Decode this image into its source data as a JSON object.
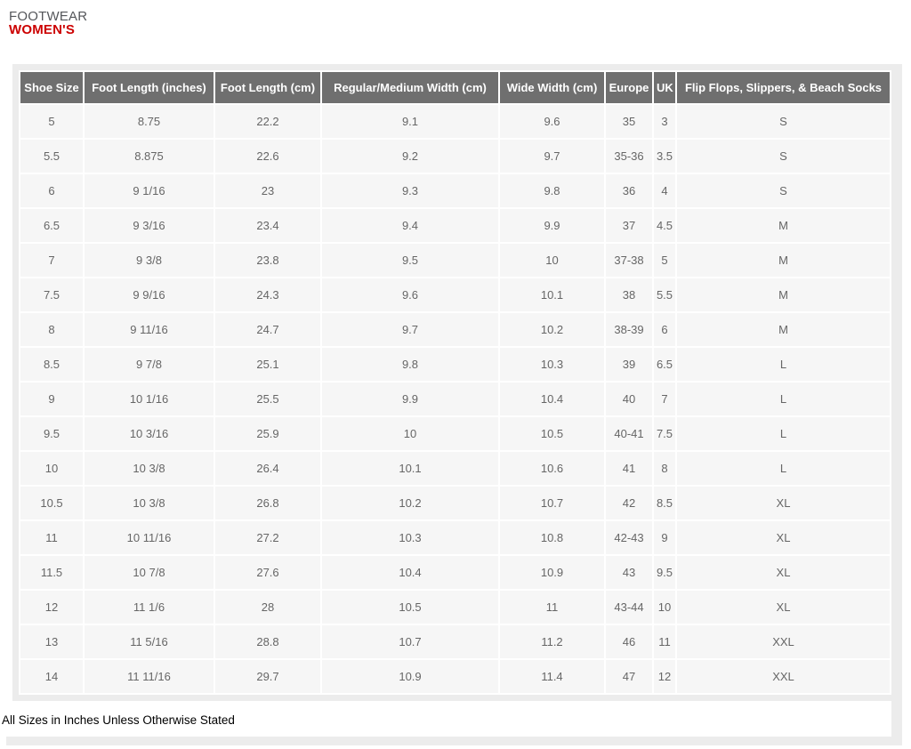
{
  "heading": {
    "category": "FOOTWEAR",
    "section": "WOMEN'S"
  },
  "table": {
    "columns": [
      "Shoe Size",
      "Foot Length (inches)",
      "Foot Length (cm)",
      "Regular/Medium Width (cm)",
      "Wide Width (cm)",
      "Europe",
      "UK",
      "Flip Flops, Slippers, & Beach Socks"
    ],
    "rows": [
      [
        "5",
        "8.75",
        "22.2",
        "9.1",
        "9.6",
        "35",
        "3",
        "S"
      ],
      [
        "5.5",
        "8.875",
        "22.6",
        "9.2",
        "9.7",
        "35-36",
        "3.5",
        "S"
      ],
      [
        "6",
        "9 1/16",
        "23",
        "9.3",
        "9.8",
        "36",
        "4",
        "S"
      ],
      [
        "6.5",
        "9 3/16",
        "23.4",
        "9.4",
        "9.9",
        "37",
        "4.5",
        "M"
      ],
      [
        "7",
        "9 3/8",
        "23.8",
        "9.5",
        "10",
        "37-38",
        "5",
        "M"
      ],
      [
        "7.5",
        "9 9/16",
        "24.3",
        "9.6",
        "10.1",
        "38",
        "5.5",
        "M"
      ],
      [
        "8",
        "9 11/16",
        "24.7",
        "9.7",
        "10.2",
        "38-39",
        "6",
        "M"
      ],
      [
        "8.5",
        "9 7/8",
        "25.1",
        "9.8",
        "10.3",
        "39",
        "6.5",
        "L"
      ],
      [
        "9",
        "10 1/16",
        "25.5",
        "9.9",
        "10.4",
        "40",
        "7",
        "L"
      ],
      [
        "9.5",
        "10 3/16",
        "25.9",
        "10",
        "10.5",
        "40-41",
        "7.5",
        "L"
      ],
      [
        "10",
        "10 3/8",
        "26.4",
        "10.1",
        "10.6",
        "41",
        "8",
        "L"
      ],
      [
        "10.5",
        "10 3/8",
        "26.8",
        "10.2",
        "10.7",
        "42",
        "8.5",
        "XL"
      ],
      [
        "11",
        "10 11/16",
        "27.2",
        "10.3",
        "10.8",
        "42-43",
        "9",
        "XL"
      ],
      [
        "11.5",
        "10 7/8",
        "27.6",
        "10.4",
        "10.9",
        "43",
        "9.5",
        "XL"
      ],
      [
        "12",
        "11 1/6",
        "28",
        "10.5",
        "11",
        "43-44",
        "10",
        "XL"
      ],
      [
        "13",
        "11 5/16",
        "28.8",
        "10.7",
        "11.2",
        "46",
        "11",
        "XXL"
      ],
      [
        "14",
        "11 11/16",
        "29.7",
        "10.9",
        "11.4",
        "47",
        "12",
        "XXL"
      ]
    ]
  },
  "footnote": "All Sizes in Inches Unless Otherwise Stated",
  "colors": {
    "header_bg": "#6f6f6f",
    "header_text": "#ffffff",
    "row_bg": "#f6f6f6",
    "cell_text": "#666666",
    "frame": "#ececec",
    "accent_red": "#cc0000",
    "category_gray": "#54565a"
  }
}
